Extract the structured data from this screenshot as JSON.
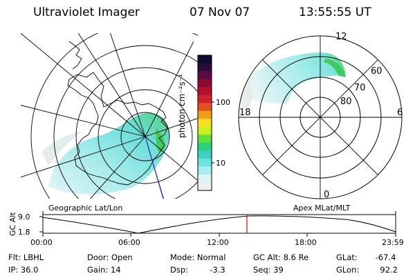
{
  "header": {
    "instrument": "Ultraviolet Imager",
    "date": "07 Nov 07",
    "time": "13:55:55 UT"
  },
  "colorbar": {
    "unit_label": "photon cm⁻²s⁻¹",
    "ticks": [
      "100",
      "10"
    ],
    "colors": [
      "#0b0b33",
      "#2a0a3e",
      "#5a0a44",
      "#8a0a33",
      "#b0102a",
      "#d0202a",
      "#e05020",
      "#f0a018",
      "#f8e020",
      "#c8f020",
      "#60e040",
      "#30d080",
      "#40d0c8",
      "#70e0e0",
      "#a8ecec",
      "#dcf4f4",
      "#f0f0f0"
    ]
  },
  "left_map": {
    "caption": "Geographic Lat/Lon"
  },
  "right_map": {
    "caption": "Apex MLat/MLT",
    "mlt_labels": {
      "top": "12",
      "bottom": "0",
      "left": "18",
      "right": "6"
    },
    "lat_labels": [
      "60",
      "70",
      "80"
    ]
  },
  "altitude_strip": {
    "axis_label": "GC Alt",
    "y_ticks": [
      "9.0",
      "1.8"
    ],
    "x_ticks": [
      "00:00",
      "06:00",
      "12:00",
      "18:00",
      "23:59"
    ],
    "current_time_marker": "13:55:55"
  },
  "status": {
    "row1": {
      "flt_label": "Flt:",
      "flt_value": "LBHL",
      "door_label": "Door:",
      "door_value": "Open",
      "mode_label": "Mode:",
      "mode_value": "Normal",
      "gcalt_label": "GC Alt:",
      "gcalt_value": "8.6 Re",
      "glat_label": "GLat:",
      "glat_value": "-67.4"
    },
    "row2": {
      "ip_label": "IP:",
      "ip_value": "36.0",
      "gain_label": "Gain:",
      "gain_value": "14",
      "dsp_label": "Dsp:",
      "dsp_value": "-3.3",
      "seq_label": "Seq:",
      "seq_value": "39",
      "glon_label": "GLon:",
      "glon_value": "92.2"
    }
  },
  "accent_colors": {
    "marker": "#e00000",
    "ground_track": "#3030c0"
  }
}
